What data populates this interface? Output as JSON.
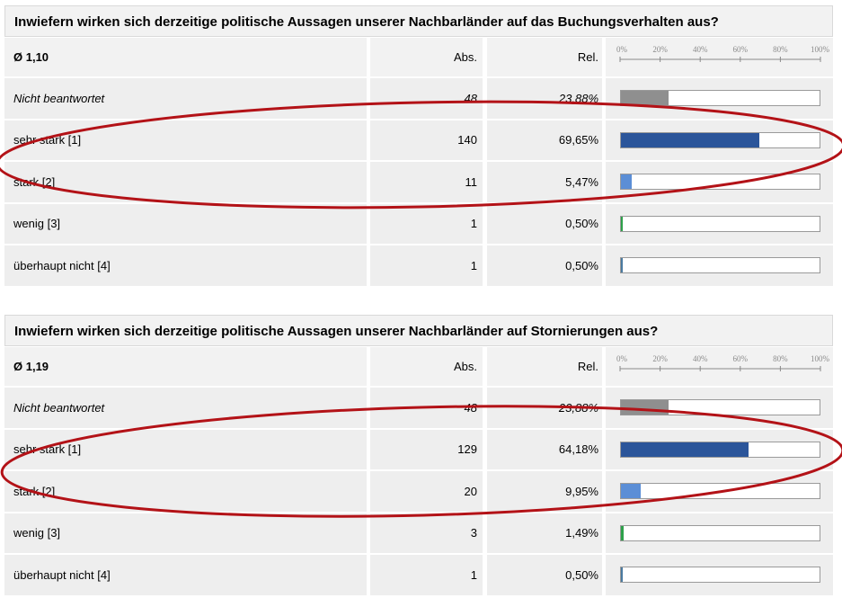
{
  "scale_ticks": [
    "0%",
    "20%",
    "40%",
    "60%",
    "80%",
    "100%"
  ],
  "colors": {
    "not_answered": "#8f8f8f",
    "very_strong": "#2b559a",
    "strong": "#5b8ed6",
    "little": "#2da04a",
    "not_at_all": "#4a7aa0",
    "ellipse": "#b31217"
  },
  "tables": [
    {
      "title": "Inwiefern wirken sich derzeitige politische Aussagen unserer Nachbarländer auf das Buchungsverhalten aus?",
      "average": "Ø 1,10",
      "abs_label": "Abs.",
      "rel_label": "Rel.",
      "rows": [
        {
          "label": "Nicht beantwortet",
          "abs": "48",
          "rel": "23,88%",
          "fraction": 0.2388,
          "color_key": "not_answered",
          "italic": true
        },
        {
          "label": "sehr stark [1]",
          "abs": "140",
          "rel": "69,65%",
          "fraction": 0.6965,
          "color_key": "very_strong",
          "italic": false
        },
        {
          "label": "stark [2]",
          "abs": "11",
          "rel": "5,47%",
          "fraction": 0.0547,
          "color_key": "strong",
          "italic": false
        },
        {
          "label": "wenig [3]",
          "abs": "1",
          "rel": "0,50%",
          "fraction": 0.005,
          "color_key": "little",
          "italic": false
        },
        {
          "label": "überhaupt nicht [4]",
          "abs": "1",
          "rel": "0,50%",
          "fraction": 0.005,
          "color_key": "not_at_all",
          "italic": false
        }
      ]
    },
    {
      "title": "Inwiefern wirken sich derzeitige politische Aussagen unserer Nachbarländer auf Stornierungen aus?",
      "average": "Ø 1,19",
      "abs_label": "Abs.",
      "rel_label": "Rel.",
      "rows": [
        {
          "label": "Nicht beantwortet",
          "abs": "48",
          "rel": "23,88%",
          "fraction": 0.2388,
          "color_key": "not_answered",
          "italic": true
        },
        {
          "label": "sehr stark [1]",
          "abs": "129",
          "rel": "64,18%",
          "fraction": 0.6418,
          "color_key": "very_strong",
          "italic": false
        },
        {
          "label": "stark [2]",
          "abs": "20",
          "rel": "9,95%",
          "fraction": 0.0995,
          "color_key": "strong",
          "italic": false
        },
        {
          "label": "wenig [3]",
          "abs": "3",
          "rel": "1,49%",
          "fraction": 0.0149,
          "color_key": "little",
          "italic": false
        },
        {
          "label": "überhaupt nicht [4]",
          "abs": "1",
          "rel": "0,50%",
          "fraction": 0.005,
          "color_key": "not_at_all",
          "italic": false
        }
      ]
    }
  ]
}
